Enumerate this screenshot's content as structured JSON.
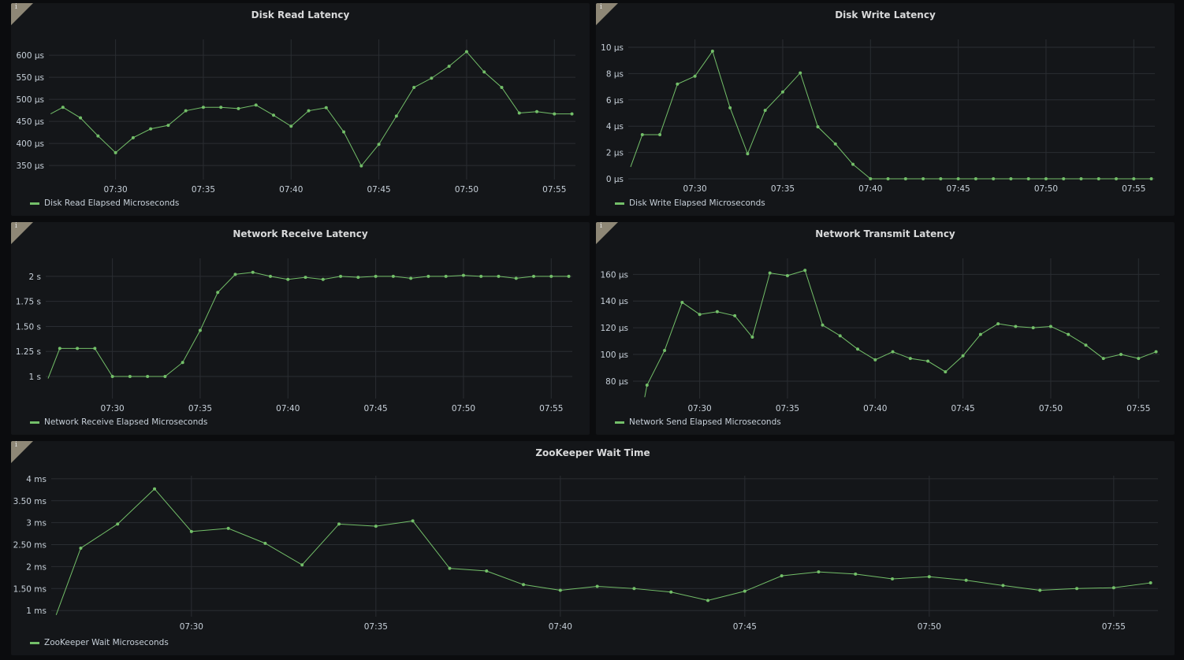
{
  "colors": {
    "series": "#73bf69",
    "grid": "#2a2d32",
    "panel": "#141619",
    "background": "#0b0c0e"
  },
  "chart_data": [
    {
      "type": "line",
      "title": "Disk Read Latency",
      "legend": "Disk Read Elapsed Microseconds",
      "legend_placement": "bottom-left",
      "grid": true,
      "xlim": [
        "07:26:12",
        "07:56:12"
      ],
      "xticks": [
        "07:30",
        "07:35",
        "07:40",
        "07:45",
        "07:50",
        "07:55"
      ],
      "ylim": [
        318,
        636
      ],
      "yticks": [
        {
          "value": 350,
          "label": "350 µs"
        },
        {
          "value": 400,
          "label": "400 µs"
        },
        {
          "value": 450,
          "label": "450 µs"
        },
        {
          "value": 500,
          "label": "500 µs"
        },
        {
          "value": 550,
          "label": "550 µs"
        },
        {
          "value": 600,
          "label": "600 µs"
        }
      ],
      "x": [
        "07:26:18",
        "07:27",
        "07:28",
        "07:29",
        "07:30",
        "07:31",
        "07:32",
        "07:33",
        "07:34",
        "07:35",
        "07:36",
        "07:37",
        "07:38",
        "07:39",
        "07:40",
        "07:41",
        "07:42",
        "07:43",
        "07:44",
        "07:45",
        "07:46",
        "07:47",
        "07:48",
        "07:49",
        "07:50",
        "07:51",
        "07:52",
        "07:53",
        "07:54",
        "07:55",
        "07:56"
      ],
      "values": [
        467,
        482,
        458,
        417,
        379,
        413,
        433,
        441,
        474,
        482,
        482,
        479,
        487,
        464,
        439,
        474,
        481,
        426,
        349,
        398,
        462,
        527,
        548,
        575,
        608,
        562,
        527,
        469,
        472,
        467,
        467
      ]
    },
    {
      "type": "line",
      "title": "Disk Write Latency",
      "legend": "Disk Write Elapsed Microseconds",
      "legend_placement": "bottom-left",
      "grid": true,
      "xlim": [
        "07:26:12",
        "07:56:12"
      ],
      "xticks": [
        "07:30",
        "07:35",
        "07:40",
        "07:45",
        "07:50",
        "07:55"
      ],
      "ylim": [
        0,
        10.6
      ],
      "yticks": [
        {
          "value": 0,
          "label": "0 µs"
        },
        {
          "value": 2,
          "label": "2 µs"
        },
        {
          "value": 4,
          "label": "4 µs"
        },
        {
          "value": 6,
          "label": "6 µs"
        },
        {
          "value": 8,
          "label": "8 µs"
        },
        {
          "value": 10,
          "label": "10 µs"
        }
      ],
      "x": [
        "07:26:20",
        "07:27",
        "07:28",
        "07:29",
        "07:30",
        "07:31",
        "07:32",
        "07:33",
        "07:34",
        "07:35",
        "07:36",
        "07:37",
        "07:38",
        "07:39",
        "07:40",
        "07:41",
        "07:42",
        "07:43",
        "07:44",
        "07:45",
        "07:46",
        "07:47",
        "07:48",
        "07:49",
        "07:50",
        "07:51",
        "07:52",
        "07:53",
        "07:54",
        "07:55",
        "07:56"
      ],
      "values": [
        0.9,
        3.35,
        3.35,
        7.2,
        7.8,
        9.7,
        5.4,
        1.9,
        5.2,
        6.6,
        8.05,
        3.95,
        2.65,
        1.1,
        0,
        0,
        0,
        0,
        0,
        0,
        0,
        0,
        0,
        0,
        0,
        0,
        0,
        0,
        0,
        0,
        0
      ]
    },
    {
      "type": "line",
      "title": "Network Receive Latency",
      "legend": "Network Receive Elapsed Microseconds",
      "legend_placement": "bottom-left",
      "grid": true,
      "xlim": [
        "07:26:12",
        "07:56:12"
      ],
      "xticks": [
        "07:30",
        "07:35",
        "07:40",
        "07:45",
        "07:50",
        "07:55"
      ],
      "ylim": [
        0.78,
        2.18
      ],
      "yticks": [
        {
          "value": 1,
          "label": "1 s"
        },
        {
          "value": 1.25,
          "label": "1.25 s"
        },
        {
          "value": 1.5,
          "label": "1.50 s"
        },
        {
          "value": 1.75,
          "label": "1.75 s"
        },
        {
          "value": 2,
          "label": "2 s"
        }
      ],
      "x": [
        "07:26:20",
        "07:27",
        "07:28",
        "07:29",
        "07:30",
        "07:31",
        "07:32",
        "07:33",
        "07:34",
        "07:35",
        "07:36",
        "07:37",
        "07:38",
        "07:39",
        "07:40",
        "07:41",
        "07:42",
        "07:43",
        "07:44",
        "07:45",
        "07:46",
        "07:47",
        "07:48",
        "07:49",
        "07:50",
        "07:51",
        "07:52",
        "07:53",
        "07:54",
        "07:55",
        "07:56"
      ],
      "values": [
        0.98,
        1.28,
        1.28,
        1.28,
        1.0,
        1.0,
        1.0,
        1.0,
        1.14,
        1.46,
        1.84,
        2.02,
        2.04,
        2.0,
        1.97,
        1.99,
        1.97,
        2.0,
        1.99,
        2.0,
        2.0,
        1.98,
        2.0,
        2.0,
        2.01,
        2.0,
        2.0,
        1.98,
        2.0,
        2.0,
        2.0
      ]
    },
    {
      "type": "line",
      "title": "Network Transmit Latency",
      "legend": "Network Send Elapsed Microseconds",
      "legend_placement": "bottom-left",
      "grid": true,
      "xlim": [
        "07:26:12",
        "07:56:12"
      ],
      "xticks": [
        "07:30",
        "07:35",
        "07:40",
        "07:45",
        "07:50",
        "07:55"
      ],
      "ylim": [
        67,
        172
      ],
      "yticks": [
        {
          "value": 80,
          "label": "80 µs"
        },
        {
          "value": 100,
          "label": "100 µs"
        },
        {
          "value": 120,
          "label": "120 µs"
        },
        {
          "value": 140,
          "label": "140 µs"
        },
        {
          "value": 160,
          "label": "160 µs"
        }
      ],
      "x": [
        "07:26:52",
        "07:27",
        "07:28",
        "07:29",
        "07:30",
        "07:31",
        "07:32",
        "07:33",
        "07:34",
        "07:35",
        "07:36",
        "07:37",
        "07:38",
        "07:39",
        "07:40",
        "07:41",
        "07:42",
        "07:43",
        "07:44",
        "07:45",
        "07:46",
        "07:47",
        "07:48",
        "07:49",
        "07:50",
        "07:51",
        "07:52",
        "07:53",
        "07:54",
        "07:55",
        "07:56"
      ],
      "values": [
        68,
        77,
        103,
        139,
        130,
        132,
        129,
        113,
        161,
        159,
        163,
        122,
        114,
        104,
        96,
        102,
        97,
        95,
        87,
        99,
        115,
        123,
        121,
        120,
        121,
        115,
        107,
        97,
        100,
        97,
        102
      ]
    },
    {
      "type": "line",
      "title": "ZooKeeper Wait Time",
      "legend": "ZooKeeper Wait Microseconds",
      "legend_placement": "bottom-left",
      "grid": true,
      "xlim": [
        "07:26:12",
        "07:56:12"
      ],
      "xticks": [
        "07:30",
        "07:35",
        "07:40",
        "07:45",
        "07:50",
        "07:55"
      ],
      "ylim": [
        0.86,
        4.07
      ],
      "yticks": [
        {
          "value": 1,
          "label": "1 ms"
        },
        {
          "value": 1.5,
          "label": "1.50 ms"
        },
        {
          "value": 2,
          "label": "2 ms"
        },
        {
          "value": 2.5,
          "label": "2.50 ms"
        },
        {
          "value": 3,
          "label": "3 ms"
        },
        {
          "value": 3.5,
          "label": "3.50 ms"
        },
        {
          "value": 4,
          "label": "4 ms"
        }
      ],
      "x": [
        "07:26:20",
        "07:27",
        "07:28",
        "07:29",
        "07:30",
        "07:31",
        "07:32",
        "07:33",
        "07:34",
        "07:35",
        "07:36",
        "07:37",
        "07:38",
        "07:39",
        "07:40",
        "07:41",
        "07:42",
        "07:43",
        "07:44",
        "07:45",
        "07:46",
        "07:47",
        "07:48",
        "07:49",
        "07:50",
        "07:51",
        "07:52",
        "07:53",
        "07:54",
        "07:55",
        "07:56"
      ],
      "values": [
        0.9,
        2.42,
        2.97,
        3.77,
        2.8,
        2.87,
        2.53,
        2.04,
        2.97,
        2.92,
        3.04,
        1.96,
        1.9,
        1.59,
        1.46,
        1.55,
        1.5,
        1.42,
        1.23,
        1.44,
        1.79,
        1.88,
        1.83,
        1.72,
        1.77,
        1.69,
        1.57,
        1.46,
        1.5,
        1.52,
        1.63
      ]
    }
  ]
}
